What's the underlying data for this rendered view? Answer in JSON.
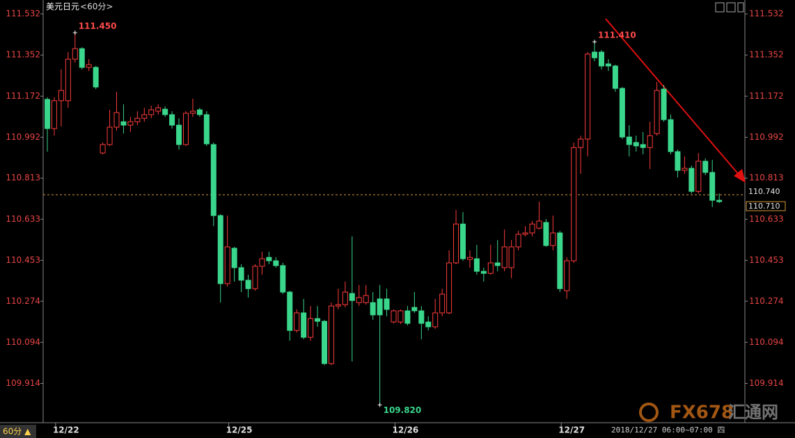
{
  "chart_data": {
    "type": "candlestick",
    "title": "美元日元",
    "subtitle": "<60分>",
    "categories": [
      null,
      null,
      null,
      "12/22",
      null,
      null,
      null,
      null,
      null,
      null,
      null,
      null,
      null,
      null,
      null,
      null,
      null,
      null,
      null,
      null,
      null,
      null,
      null,
      null,
      null,
      null,
      null,
      null,
      "12/25",
      null,
      null,
      null,
      null,
      null,
      null,
      null,
      null,
      null,
      null,
      null,
      null,
      null,
      null,
      null,
      null,
      null,
      null,
      null,
      null,
      null,
      null,
      null,
      "12/26",
      null,
      null,
      null,
      null,
      null,
      null,
      null,
      null,
      null,
      null,
      null,
      null,
      null,
      null,
      null,
      null,
      null,
      null,
      null,
      null,
      null,
      null,
      null,
      "12/27",
      null,
      null,
      null,
      null,
      null,
      null,
      null,
      null,
      null,
      null,
      null,
      null,
      null,
      null,
      null,
      null,
      null,
      null,
      null,
      null,
      null
    ],
    "open": [
      111.158,
      111.03,
      111.152,
      111.152,
      111.334,
      111.38,
      111.298,
      111.298,
      110.923,
      110.96,
      111.036,
      111.06,
      111.045,
      111.06,
      111.075,
      111.091,
      111.106,
      111.115,
      111.091,
      111.045,
      110.96,
      111.097,
      111.112,
      111.091,
      110.96,
      110.649,
      110.351,
      110.506,
      110.421,
      110.366,
      110.329,
      110.427,
      110.466,
      110.451,
      110.43,
      110.314,
      110.146,
      110.223,
      110.116,
      110.198,
      110.186,
      110.001,
      110.253,
      110.259,
      110.308,
      110.268,
      110.268,
      110.268,
      110.284,
      110.284,
      110.183,
      110.183,
      110.232,
      110.247,
      110.232,
      110.183,
      110.162,
      110.223,
      110.223,
      110.442,
      110.612,
      110.457,
      110.46,
      110.405,
      110.396,
      110.442,
      110.421,
      110.421,
      110.512,
      110.567,
      110.573,
      110.594,
      110.619,
      110.518,
      110.573,
      110.32,
      110.451,
      110.947,
      110.984,
      111.365,
      111.365,
      111.313,
      111.304,
      111.206,
      110.993,
      110.969,
      110.96,
      110.947,
      111.008,
      111.203,
      111.069,
      110.929,
      110.847,
      110.856,
      110.755,
      110.887,
      110.838,
      110.716
    ],
    "high": [
      111.167,
      111.167,
      111.289,
      111.365,
      111.45,
      111.386,
      111.334,
      111.304,
      110.969,
      111.112,
      111.191,
      111.136,
      111.081,
      111.106,
      111.121,
      111.13,
      111.136,
      111.127,
      111.106,
      111.075,
      111.106,
      111.161,
      111.121,
      111.106,
      110.969,
      110.655,
      110.649,
      110.512,
      110.436,
      110.39,
      110.436,
      110.491,
      110.491,
      110.466,
      110.442,
      110.32,
      110.238,
      110.284,
      110.253,
      110.253,
      110.192,
      110.268,
      110.329,
      110.36,
      110.558,
      110.345,
      110.345,
      110.314,
      110.345,
      110.329,
      110.238,
      110.238,
      110.253,
      110.314,
      110.253,
      110.208,
      110.284,
      110.329,
      110.497,
      110.673,
      110.664,
      110.497,
      110.521,
      110.421,
      110.521,
      110.542,
      110.588,
      110.542,
      110.582,
      110.603,
      110.625,
      110.71,
      110.634,
      110.649,
      110.582,
      110.466,
      110.969,
      110.999,
      111.365,
      111.41,
      111.374,
      111.334,
      111.31,
      111.212,
      111.045,
      110.999,
      111.015,
      111.06,
      111.234,
      111.221,
      111.091,
      110.938,
      110.908,
      110.868,
      110.923,
      110.899,
      110.893,
      110.746
    ],
    "low": [
      110.929,
      110.999,
      111.039,
      111.121,
      111.319,
      111.289,
      111.282,
      111.203,
      110.917,
      110.954,
      111.021,
      111.008,
      111.015,
      111.045,
      111.06,
      111.075,
      111.091,
      111.081,
      111.03,
      110.938,
      110.954,
      111.081,
      111.081,
      110.954,
      110.603,
      110.268,
      110.338,
      110.36,
      110.314,
      110.29,
      110.32,
      110.39,
      110.436,
      110.421,
      110.305,
      110.101,
      110.137,
      110.107,
      110.101,
      110.162,
      109.994,
      109.994,
      110.238,
      110.247,
      110.01,
      110.253,
      110.259,
      110.192,
      109.82,
      110.208,
      110.177,
      110.174,
      110.168,
      110.223,
      110.107,
      110.146,
      110.153,
      110.208,
      110.217,
      110.436,
      110.451,
      110.421,
      110.39,
      110.36,
      110.39,
      110.405,
      110.405,
      110.375,
      110.497,
      110.558,
      110.558,
      110.588,
      110.512,
      110.497,
      110.314,
      110.284,
      110.442,
      110.832,
      110.908,
      111.325,
      111.289,
      111.282,
      111.191,
      110.984,
      110.908,
      110.929,
      110.917,
      110.853,
      110.999,
      111.06,
      110.917,
      110.816,
      110.832,
      110.746,
      110.746,
      110.826,
      110.686,
      110.704
    ],
    "close": [
      111.03,
      111.152,
      111.197,
      111.334,
      111.38,
      111.298,
      111.31,
      111.212,
      110.96,
      111.036,
      111.1,
      111.045,
      111.06,
      111.075,
      111.091,
      111.112,
      111.121,
      111.091,
      111.045,
      110.96,
      111.097,
      111.106,
      111.091,
      110.963,
      110.649,
      110.351,
      110.512,
      110.421,
      110.366,
      110.329,
      110.427,
      110.46,
      110.451,
      110.43,
      110.314,
      110.146,
      110.223,
      110.116,
      110.198,
      110.186,
      110.001,
      110.253,
      110.259,
      110.314,
      110.277,
      110.29,
      110.299,
      110.214,
      110.214,
      110.238,
      110.232,
      110.232,
      110.177,
      110.232,
      110.177,
      110.162,
      110.223,
      110.305,
      110.442,
      110.612,
      110.46,
      110.466,
      110.405,
      110.396,
      110.442,
      110.43,
      110.512,
      110.512,
      110.567,
      110.573,
      110.612,
      110.625,
      110.518,
      110.573,
      110.329,
      110.451,
      110.947,
      110.984,
      111.356,
      111.34,
      111.304,
      111.304,
      111.206,
      110.993,
      110.96,
      110.954,
      110.947,
      110.999,
      111.197,
      111.069,
      110.929,
      110.847,
      110.856,
      110.755,
      110.887,
      110.838,
      110.716,
      110.71
    ],
    "up_color": "#ff3c3c",
    "down_color": "#3ad68c",
    "ylim": [
      109.742,
      111.593
    ],
    "yticks": [
      111.532,
      111.352,
      111.172,
      110.992,
      110.813,
      110.633,
      110.453,
      110.274,
      110.094,
      109.914
    ],
    "annotations": [
      {
        "value": 111.45,
        "label": "111.450"
      },
      {
        "value": 111.41,
        "label": "111.410"
      },
      {
        "value": 109.82,
        "label": "109.820"
      }
    ],
    "price_line": {
      "value": 110.74,
      "label": "110.740"
    },
    "price_box": {
      "value": 110.71,
      "label": "110.710"
    }
  },
  "footer": {
    "period": "60分 ▲",
    "time": "2018/12/27 06:00~07:00 四"
  },
  "watermark": {
    "brand": "FX678",
    "name": "汇通网"
  }
}
